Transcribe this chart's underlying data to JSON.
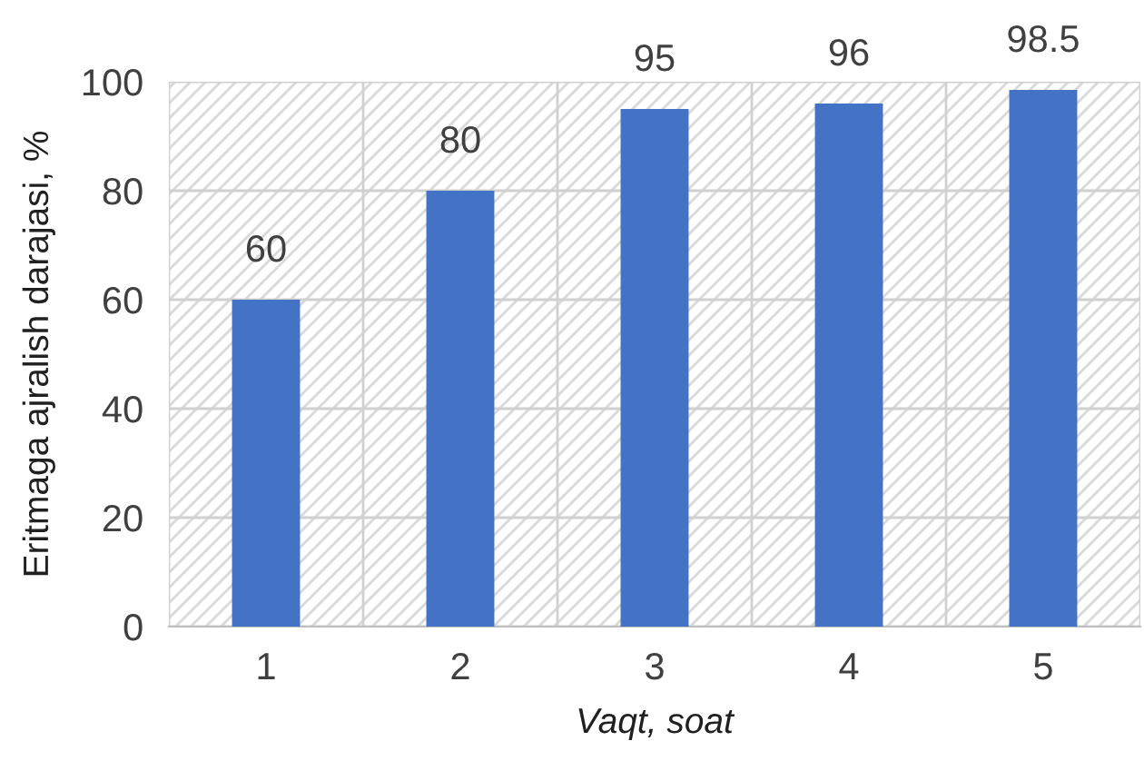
{
  "chart_data": {
    "type": "bar",
    "xlabel": "Vaqt, soat",
    "ylabel": "Eritmaga ajralish darajasi, %",
    "categories": [
      "1",
      "2",
      "3",
      "4",
      "5"
    ],
    "values": [
      60,
      80,
      95,
      96,
      98.5
    ],
    "color": "#4472c4",
    "ylim": [
      0,
      100
    ],
    "yticks": [
      0,
      20,
      40,
      60,
      80,
      100
    ],
    "grid": true,
    "data_labels": true
  }
}
